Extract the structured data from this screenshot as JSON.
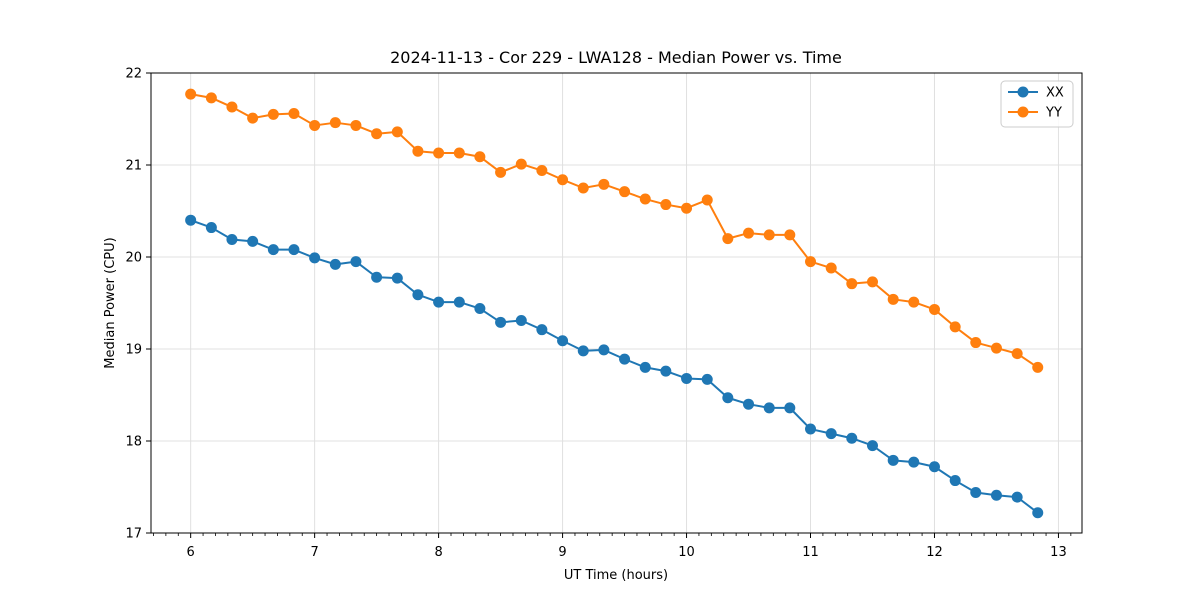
{
  "figure": {
    "background": "#ffffff"
  },
  "style": {
    "grid_color": "#e0e0e0",
    "spine_color": "#000000",
    "text_color": "#000000",
    "legend_border_color": "#cccccc",
    "legend_background": "#ffffff"
  },
  "chart_data": {
    "type": "line",
    "title": "2024-11-13 - Cor 229 - LWA128 - Median Power vs. Time",
    "xlabel": "UT Time (hours)",
    "ylabel": "Median Power (CPU)",
    "xlim": [
      5.68,
      13.19
    ],
    "ylim": [
      17,
      22
    ],
    "xticks": [
      6,
      7,
      8,
      9,
      10,
      11,
      12,
      13
    ],
    "yticks": [
      17,
      18,
      19,
      20,
      21,
      22
    ],
    "x_minor_tick_step": 0.1,
    "grid": true,
    "legend_position": "upper right",
    "marker": "o",
    "x": [
      6.0,
      6.167,
      6.333,
      6.5,
      6.667,
      6.833,
      7.0,
      7.167,
      7.333,
      7.5,
      7.667,
      7.833,
      8.0,
      8.167,
      8.333,
      8.5,
      8.667,
      8.833,
      9.0,
      9.167,
      9.333,
      9.5,
      9.667,
      9.833,
      10.0,
      10.167,
      10.333,
      10.5,
      10.667,
      10.833,
      11.0,
      11.167,
      11.333,
      11.5,
      11.667,
      11.833,
      12.0,
      12.167,
      12.333,
      12.5,
      12.667,
      12.833
    ],
    "series": [
      {
        "name": "XX",
        "color": "#1f77b4",
        "values": [
          20.4,
          20.32,
          20.19,
          20.17,
          20.08,
          20.08,
          19.99,
          19.92,
          19.95,
          19.78,
          19.77,
          19.59,
          19.51,
          19.51,
          19.44,
          19.29,
          19.31,
          19.21,
          19.09,
          18.98,
          18.99,
          18.89,
          18.8,
          18.76,
          18.68,
          18.67,
          18.47,
          18.4,
          18.36,
          18.36,
          18.13,
          18.08,
          18.03,
          17.95,
          17.79,
          17.77,
          17.72,
          17.57,
          17.44,
          17.41,
          17.39,
          17.22
        ]
      },
      {
        "name": "YY",
        "color": "#ff7f0e",
        "values": [
          21.77,
          21.73,
          21.63,
          21.51,
          21.55,
          21.56,
          21.43,
          21.46,
          21.43,
          21.34,
          21.36,
          21.15,
          21.13,
          21.13,
          21.09,
          20.92,
          21.01,
          20.94,
          20.84,
          20.75,
          20.79,
          20.71,
          20.63,
          20.57,
          20.53,
          20.62,
          20.2,
          20.26,
          20.24,
          20.24,
          19.95,
          19.88,
          19.71,
          19.73,
          19.54,
          19.51,
          19.43,
          19.24,
          19.07,
          19.01,
          18.95,
          18.8
        ]
      }
    ]
  }
}
